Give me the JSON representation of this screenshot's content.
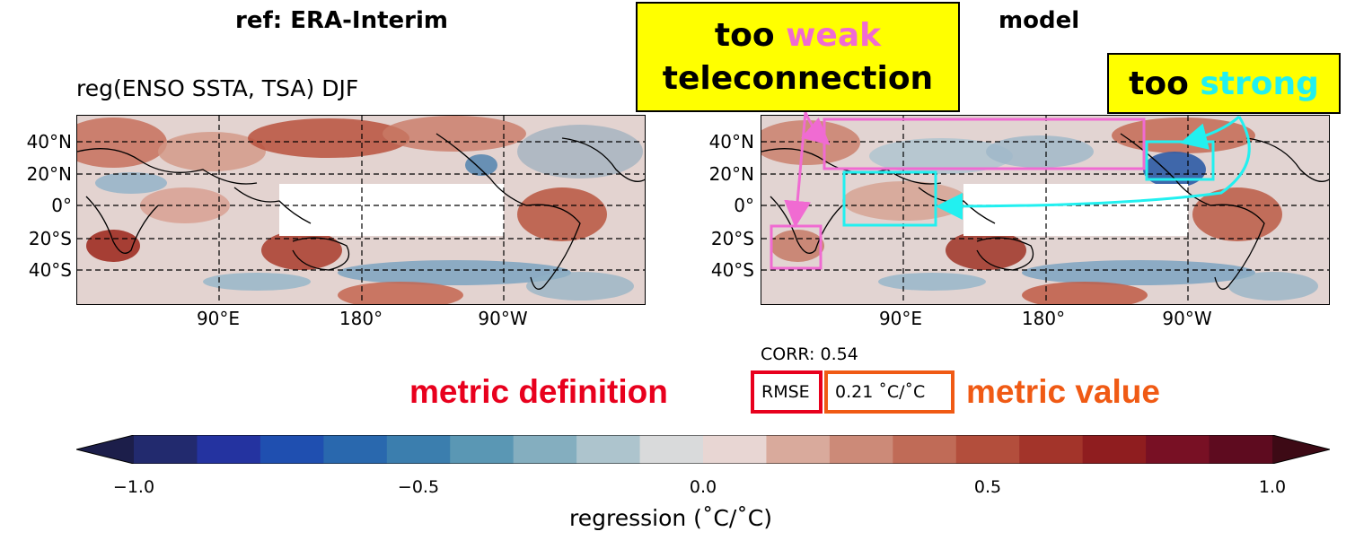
{
  "panels": {
    "left_title": "ref: ERA-Interim",
    "right_title": "model",
    "subtitle": "reg(ENSO SSTA, TSA) DJF"
  },
  "lat_labels": [
    "40°N",
    "20°N",
    "0°",
    "20°S",
    "40°S"
  ],
  "lon_labels": [
    "90°E",
    "180°",
    "90°W"
  ],
  "callouts": {
    "weak": {
      "line1_a": "too ",
      "line1_b": "weak",
      "line2": "teleconnection"
    },
    "strong": {
      "a": "too ",
      "b": "strong"
    }
  },
  "metrics": {
    "corr": "CORR: 0.54",
    "definition_label": "metric definition",
    "definition_box": "RMSE",
    "value_box": "0.21 ˚C/˚C",
    "value_label": "metric value"
  },
  "colorbar": {
    "ticks": [
      "−1.0",
      "−0.5",
      "0.0",
      "0.5",
      "1.0"
    ],
    "label": "regression (˚C/˚C)",
    "range": [
      -1.0,
      1.0
    ],
    "colors": [
      "#1c1e4a",
      "#222a6e",
      "#2433a0",
      "#1f4fb0",
      "#2968ae",
      "#3b7eae",
      "#5a97b4",
      "#84aebf",
      "#adc4cd",
      "#d9dadb",
      "#e8d6d3",
      "#d9aa9c",
      "#cc8a78",
      "#c06b57",
      "#b34e3c",
      "#a3342a",
      "#8f1d1f",
      "#781024",
      "#5e0b1f",
      "#3d0a15"
    ]
  },
  "colors": {
    "callout_bg": "#ffff00",
    "weak_pink": "#f06bd2",
    "strong_cyan": "#22f0f0",
    "definition_red": "#e8001d",
    "value_orange": "#f05a14"
  }
}
